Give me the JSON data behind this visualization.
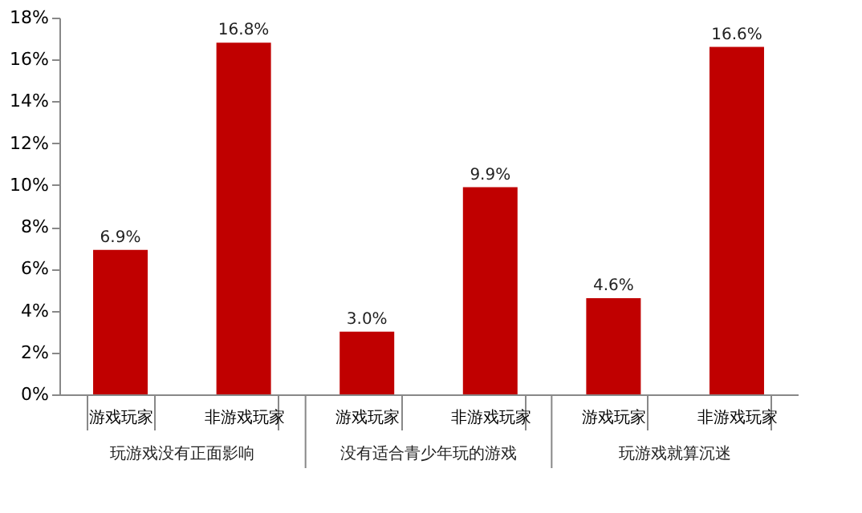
{
  "chart_data": {
    "type": "bar",
    "categories": [
      "游戏玩家",
      "非游戏玩家",
      "游戏玩家",
      "非游戏玩家",
      "游戏玩家",
      "非游戏玩家"
    ],
    "values": [
      6.9,
      16.8,
      3.0,
      9.9,
      4.6,
      16.6
    ],
    "value_labels": [
      "6.9%",
      "16.8%",
      "3.0%",
      "9.9%",
      "4.6%",
      "16.6%"
    ],
    "color": "#c00000",
    "ylim": [
      0,
      18
    ],
    "yticks": [
      {
        "value": 0,
        "label": "0%"
      },
      {
        "value": 2,
        "label": "2%"
      },
      {
        "value": 4,
        "label": "4%"
      },
      {
        "value": 6,
        "label": "6%"
      },
      {
        "value": 8,
        "label": "8%"
      },
      {
        "value": 10,
        "label": "10%"
      },
      {
        "value": 12,
        "label": "12%"
      },
      {
        "value": 14,
        "label": "14%"
      },
      {
        "value": 16,
        "label": "16%"
      },
      {
        "value": 18,
        "label": "18%"
      }
    ],
    "annotations": [
      "玩游戏没有正面影响",
      "没有适合青少年玩的游戏",
      "玩游戏就算沉迷"
    ],
    "grid": false
  }
}
